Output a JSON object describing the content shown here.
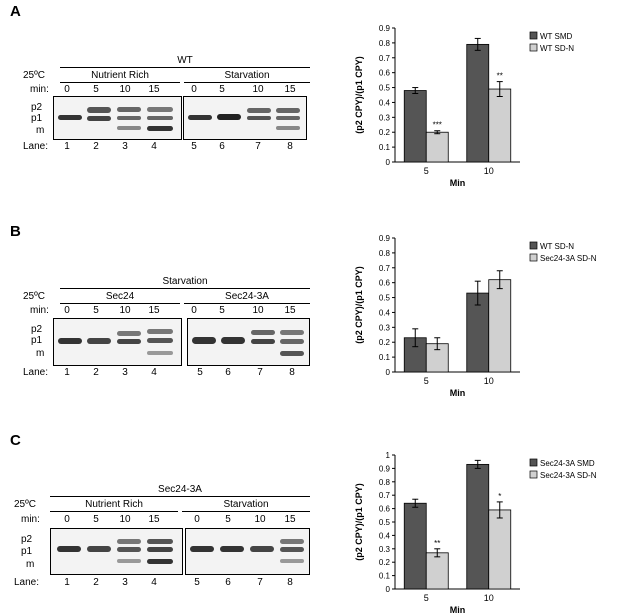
{
  "panels": [
    {
      "letter": "A",
      "top_label": "WT",
      "temp": "25ºC",
      "groups": [
        "Nutrient Rich",
        "Starvation"
      ],
      "min_label": "min:",
      "times": [
        "0",
        "5",
        "10",
        "15",
        "0",
        "5",
        "10",
        "15"
      ],
      "bands": [
        "p2",
        "p1",
        "m"
      ],
      "lane_label": "Lane:",
      "lanes": [
        "1",
        "2",
        "3",
        "4",
        "5",
        "6",
        "7",
        "8"
      ],
      "chart_ref": 0
    },
    {
      "letter": "B",
      "top_label": "Starvation",
      "temp": "25ºC",
      "groups": [
        "Sec24",
        "Sec24-3A"
      ],
      "min_label": "min:",
      "times": [
        "0",
        "5",
        "10",
        "15",
        "0",
        "5",
        "10",
        "15"
      ],
      "bands": [
        "p2",
        "p1",
        "m"
      ],
      "lane_label": "Lane:",
      "lanes": [
        "1",
        "2",
        "3",
        "4",
        "5",
        "6",
        "7",
        "8"
      ],
      "chart_ref": 1
    },
    {
      "letter": "C",
      "top_label": "Sec24-3A",
      "temp": "25ºC",
      "groups": [
        "Nutrient Rich",
        "Starvation"
      ],
      "min_label": "min:",
      "times": [
        "0",
        "5",
        "10",
        "15",
        "0",
        "5",
        "10",
        "15"
      ],
      "bands": [
        "p2",
        "p1",
        "m"
      ],
      "lane_label": "Lane:",
      "lanes": [
        "1",
        "2",
        "3",
        "4",
        "5",
        "6",
        "7",
        "8"
      ],
      "chart_ref": 2
    }
  ],
  "colors": {
    "dark_bar": "#555555",
    "light_bar": "#d0d0d0",
    "band": "#3a3a3a"
  },
  "chart_data": [
    {
      "type": "bar",
      "categories": [
        "5",
        "10"
      ],
      "series": [
        {
          "name": "WT SMD",
          "values": [
            0.48,
            0.79
          ],
          "errors": [
            0.02,
            0.04
          ]
        },
        {
          "name": "WT SD-N",
          "values": [
            0.2,
            0.49
          ],
          "errors": [
            0.01,
            0.05
          ]
        }
      ],
      "significance": [
        [
          "",
          ""
        ],
        [
          "***",
          "**"
        ]
      ],
      "xlabel": "Min",
      "ylabel": "(p2 CPY)/(p1 CPY)",
      "ylim": [
        0,
        0.9
      ],
      "yticks": [
        "0",
        "0.1",
        "0.2",
        "0.3",
        "0.4",
        "0.5",
        "0.6",
        "0.7",
        "0.8",
        "0.9"
      ],
      "grid": false,
      "legend": "top-right"
    },
    {
      "type": "bar",
      "categories": [
        "5",
        "10"
      ],
      "series": [
        {
          "name": "WT SD-N",
          "values": [
            0.23,
            0.53
          ],
          "errors": [
            0.06,
            0.08
          ]
        },
        {
          "name": "Sec24-3A SD-N",
          "values": [
            0.19,
            0.62
          ],
          "errors": [
            0.04,
            0.06
          ]
        }
      ],
      "significance": [
        [
          "",
          ""
        ],
        [
          "",
          ""
        ]
      ],
      "xlabel": "Min",
      "ylabel": "(p2 CPY)/(p1 CPY)",
      "ylim": [
        0,
        0.9
      ],
      "yticks": [
        "0",
        "0.1",
        "0.2",
        "0.3",
        "0.4",
        "0.5",
        "0.6",
        "0.7",
        "0.8",
        "0.9"
      ],
      "grid": false,
      "legend": "top-right"
    },
    {
      "type": "bar",
      "categories": [
        "5",
        "10"
      ],
      "series": [
        {
          "name": "Sec24-3A SMD",
          "values": [
            0.64,
            0.93
          ],
          "errors": [
            0.03,
            0.03
          ]
        },
        {
          "name": "Sec24-3A SD-N",
          "values": [
            0.27,
            0.59
          ],
          "errors": [
            0.03,
            0.06
          ]
        }
      ],
      "significance": [
        [
          "",
          ""
        ],
        [
          "**",
          "*"
        ]
      ],
      "xlabel": "Min",
      "ylabel": "(p2 CPY)/(p1 CPY)",
      "ylim": [
        0,
        1
      ],
      "yticks": [
        "0",
        "0.1",
        "0.2",
        "0.3",
        "0.4",
        "0.5",
        "0.6",
        "0.7",
        "0.8",
        "0.9",
        "1"
      ],
      "grid": false,
      "legend": "top-right"
    }
  ]
}
